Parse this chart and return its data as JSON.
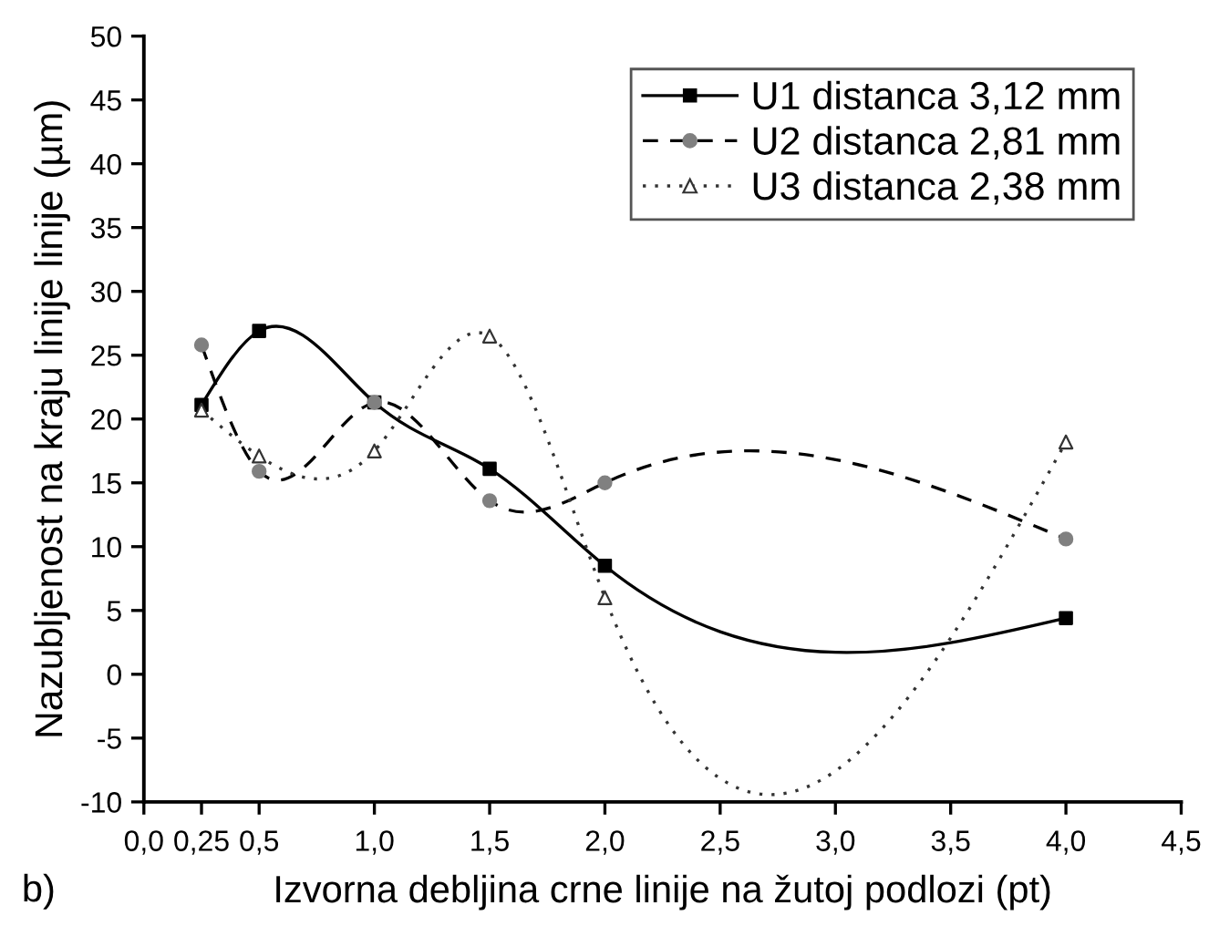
{
  "chart_data": {
    "type": "line",
    "xlabel": "Izvorna debljina crne linije na žutoj podlozi (pt)",
    "ylabel": "Nazubljenost na kraju linije linije (µm)",
    "x": [
      0.25,
      0.5,
      1.0,
      1.5,
      2.0,
      4.0
    ],
    "series": [
      {
        "name": "U1 distanca 3,12 mm",
        "color": "#000000",
        "colors": [
          "#000000",
          "#000000",
          "#000000",
          "#000000",
          "#000000",
          "#000000"
        ],
        "marker": "square",
        "line_style": "solid",
        "values": [
          21.1,
          26.9,
          21.3,
          16.1,
          8.5,
          4.4
        ]
      },
      {
        "name": "U2 distanca 2,81 mm",
        "color": "#000000",
        "colors": [
          "#808080",
          "#808080",
          "#808080",
          "#808080",
          "#808080",
          "#808080"
        ],
        "marker": "circle",
        "line_style": "dashed",
        "values": [
          25.8,
          15.9,
          21.3,
          13.6,
          15.0,
          10.6
        ]
      },
      {
        "name": "U3 distanca 2,38 mm",
        "color": "#333333",
        "colors": [
          "#ffffff",
          "#ffffff",
          "#ffffff",
          "#ffffff",
          "#ffffff",
          "#ffffff"
        ],
        "marker": "triangle",
        "line_style": "dotted",
        "values": [
          20.7,
          17.1,
          17.5,
          26.5,
          6.0,
          18.2
        ]
      }
    ],
    "xlim": [
      0,
      4.5
    ],
    "xticks": [
      {
        "value": 0,
        "label": "0,0"
      },
      {
        "value": 0.25,
        "label": "0,25"
      },
      {
        "value": 0.5,
        "label": "0,5"
      },
      {
        "value": 1.0,
        "label": "1,0"
      },
      {
        "value": 1.5,
        "label": "1,5"
      },
      {
        "value": 2.0,
        "label": "2,0"
      },
      {
        "value": 2.5,
        "label": "2,5"
      },
      {
        "value": 3.0,
        "label": "3,0"
      },
      {
        "value": 3.5,
        "label": "3,5"
      },
      {
        "value": 4.0,
        "label": "4,0"
      },
      {
        "value": 4.5,
        "label": "4,5"
      }
    ],
    "ylim": [
      -10,
      50
    ],
    "yticks": [
      -10,
      -5,
      0,
      5,
      10,
      15,
      20,
      25,
      30,
      35,
      40,
      45,
      50
    ],
    "legend": "top right",
    "grid": false,
    "annotations": [
      "b)"
    ]
  }
}
